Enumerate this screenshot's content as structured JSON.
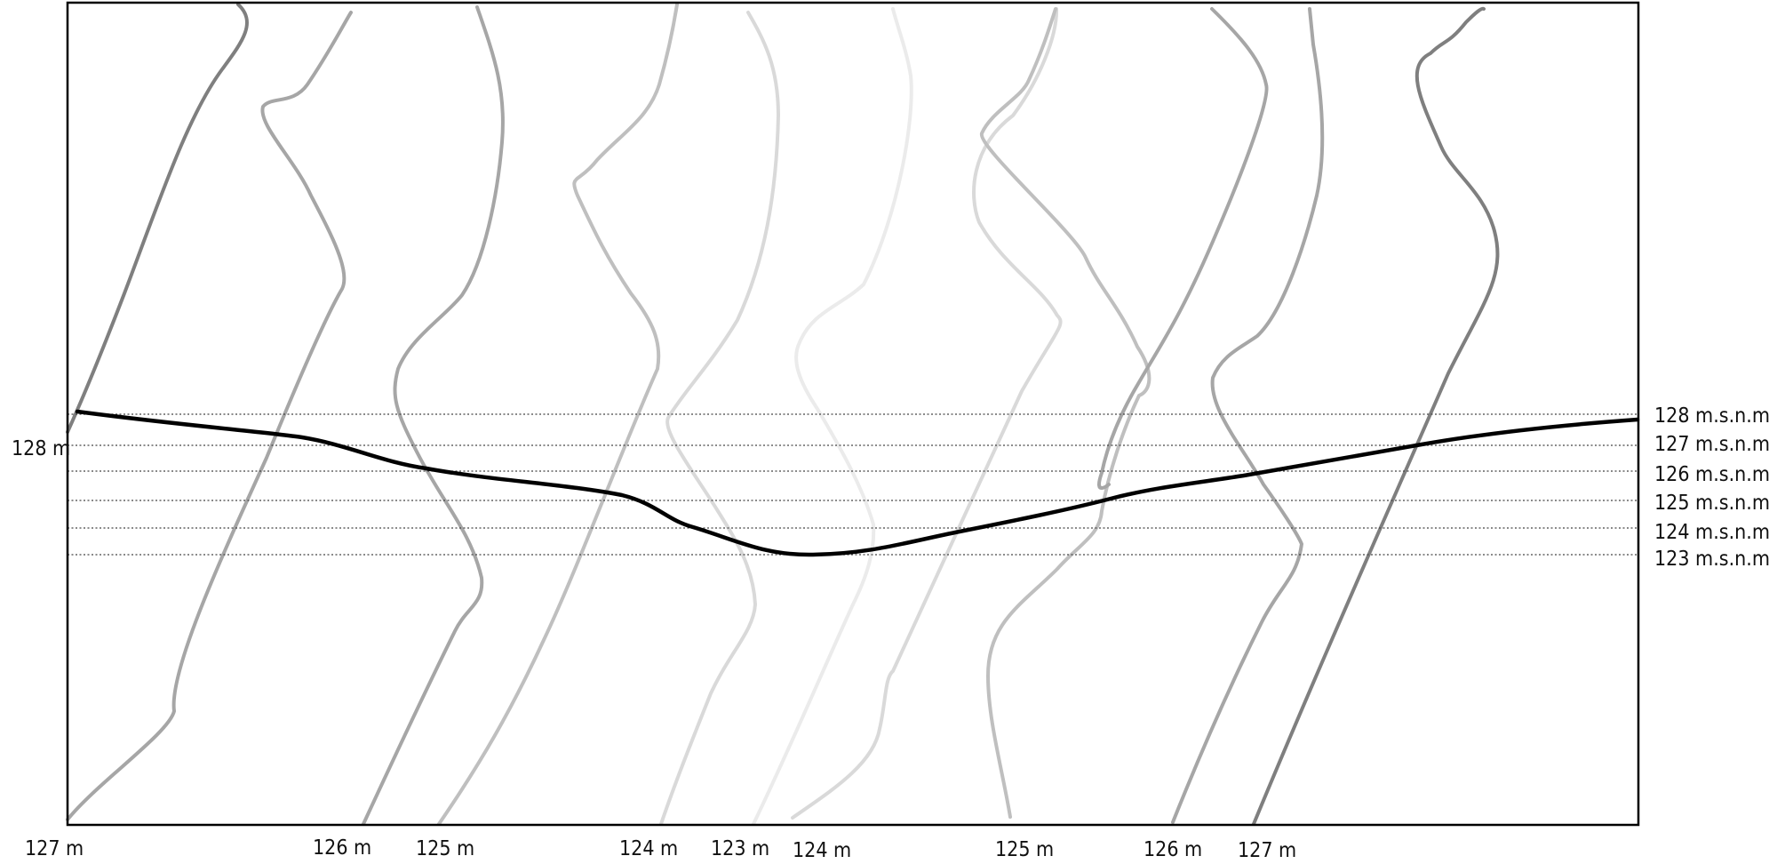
{
  "contour_labels_bottom": [
    "127 m",
    "126 m",
    "125 m",
    "124 m",
    "123 m",
    "124 m",
    "125 m",
    "126 m",
    "127 m"
  ],
  "contour_label_left": "128 m",
  "level_labels": [
    "128 m.s.n.m",
    "127 m.s.n.m",
    "126 m.s.n.m",
    "125 m.s.n.m",
    "124 m.s.n.m",
    "123 m.s.n.m"
  ],
  "colors": {
    "profile_line": "#000000",
    "contour_127": "#7f7f7f",
    "contour_126": "#a6a6a6",
    "contour_125": "#bfbfbf",
    "contour_124": "#d9d9d9",
    "contour_123": "#ebebeb",
    "level_guides": "#444444"
  }
}
